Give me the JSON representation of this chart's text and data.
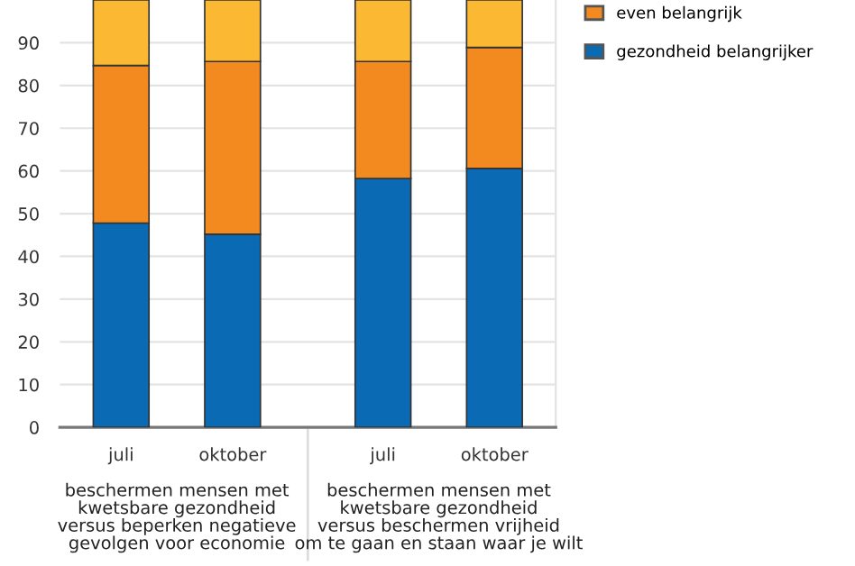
{
  "chart_data": {
    "type": "bar",
    "stacked": true,
    "categories": [
      "juli",
      "oktober",
      "juli",
      "oktober"
    ],
    "series": [
      {
        "name": "gezondheid belangrijker",
        "color": "#0a6ab4",
        "values": [
          47.8,
          45.2,
          58.2,
          60.6
        ]
      },
      {
        "name": "even belangrijk",
        "color": "#f28a1f",
        "values": [
          36.9,
          40.4,
          27.4,
          28.3
        ]
      },
      {
        "color": "#fbb933",
        "values": [
          15.3,
          14.4,
          14.4,
          11.1
        ]
      }
    ],
    "ylim": [
      0,
      100
    ],
    "yticks": [
      0,
      10,
      20,
      30,
      40,
      50,
      60,
      70,
      80,
      90
    ],
    "grid": "y",
    "legend": "right",
    "annotations": [
      "beschermen mensen met\nkwetsbare gezondheid\nversus beperken negatieve\ngevolgen voor economie",
      "beschermen mensen met\nkwetsbare gezondheid\nversus beschermen vrijheid\nom te gaan en staan waar je wilt"
    ]
  }
}
